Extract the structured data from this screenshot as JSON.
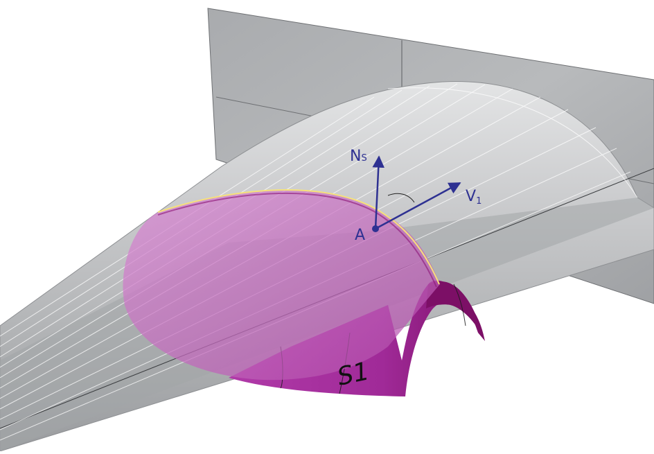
{
  "labels": {
    "normal": {
      "main": "N",
      "sub": "S"
    },
    "velocity": {
      "main": "V",
      "sub": "1"
    },
    "point": "A",
    "surface": "S1"
  },
  "colors": {
    "vector": "#2e3192",
    "plane": "#a7a9ac",
    "wing": "#b9bbbd",
    "surface": "#b43cab",
    "surface_dark": "#8c1476",
    "highlight": "#f6e27a"
  }
}
